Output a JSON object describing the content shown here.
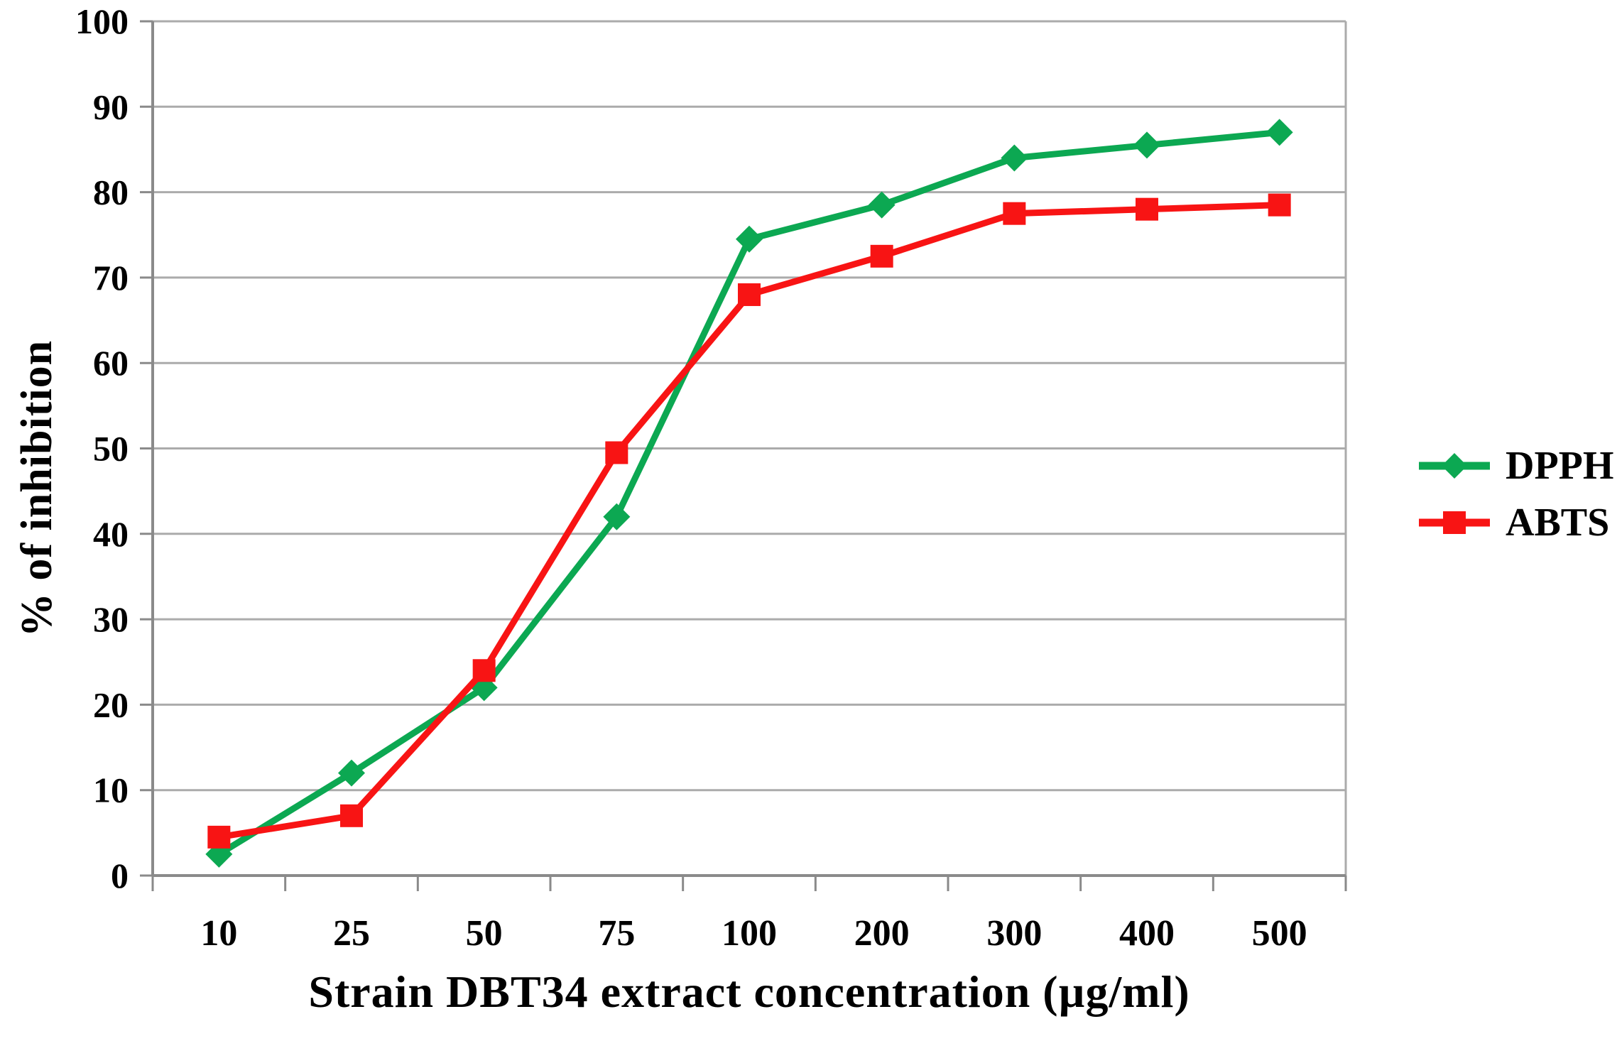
{
  "chart_data": {
    "type": "line",
    "title": "",
    "xlabel": "Strain DBT34 extract concentration (µg/ml)",
    "ylabel": "% of inhibition",
    "categories": [
      "10",
      "25",
      "50",
      "75",
      "100",
      "200",
      "300",
      "400",
      "500"
    ],
    "series": [
      {
        "name": "DPPH",
        "color": "#0CA852",
        "marker": "diamond",
        "values": [
          2.5,
          12,
          22,
          42,
          74.5,
          78.5,
          84,
          85.5,
          87
        ]
      },
      {
        "name": "ABTS",
        "color": "#F81414",
        "marker": "square",
        "values": [
          4.5,
          7,
          24,
          49.5,
          68,
          72.5,
          77.5,
          78,
          78.5
        ]
      }
    ],
    "ylim": [
      0,
      100
    ],
    "ytick_step": 10,
    "grid": "horizontal",
    "legend_position": "right"
  },
  "colors": {
    "background": "#FFFFFF",
    "gridline": "#ABABAB",
    "axis": "#8A8A8A",
    "text": "#000000"
  }
}
